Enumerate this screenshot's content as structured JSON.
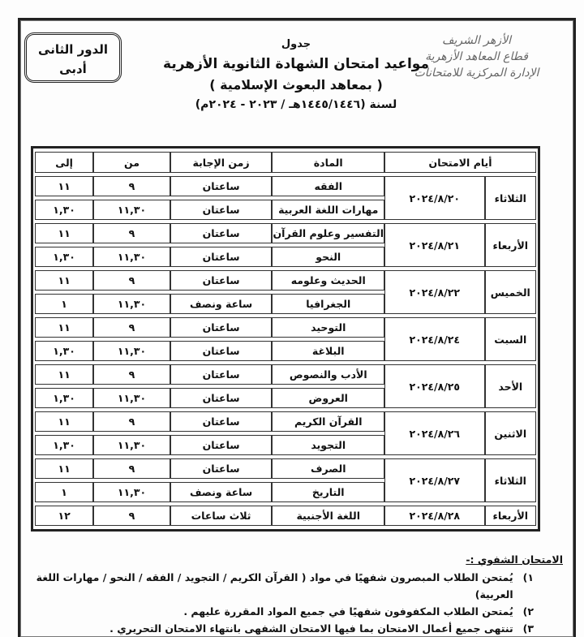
{
  "header": {
    "round_box": [
      "الدور الثانى",
      "أدبى"
    ],
    "logo_lines": [
      "الأزهر الشريف",
      "قطاع المعاهد الأزهرية",
      "الإدارة المركزية للامتحانات"
    ],
    "title_small": "جدول",
    "title_main": "مواعيد امتحان الشهادة الثانوية الأزهرية",
    "title_sub": "( بمعاهد البعوث الإسلامية )",
    "title_year": "لسنة (١٤٤٥/١٤٤٦هـ / ٢٠٢٣ - ٢٠٢٤م)"
  },
  "table": {
    "headers": {
      "days": "أيام الامتحان",
      "subject": "المادة",
      "duration": "زمن الإجابة",
      "from": "من",
      "to": "إلى"
    },
    "groups": [
      {
        "day": "الثلاثاء",
        "date": "٢٠٢٤/٨/٢٠",
        "rows": [
          [
            "الفقه",
            "ساعتان",
            "٩",
            "١١"
          ],
          [
            "مهارات اللغة العربية",
            "ساعتان",
            "١١,٣٠",
            "١,٣٠"
          ]
        ]
      },
      {
        "day": "الأربعاء",
        "date": "٢٠٢٤/٨/٢١",
        "rows": [
          [
            "التفسير وعلوم القرآن",
            "ساعتان",
            "٩",
            "١١"
          ],
          [
            "النحو",
            "ساعتان",
            "١١,٣٠",
            "١,٣٠"
          ]
        ]
      },
      {
        "day": "الخميس",
        "date": "٢٠٢٤/٨/٢٢",
        "rows": [
          [
            "الحديث وعلومه",
            "ساعتان",
            "٩",
            "١١"
          ],
          [
            "الجغرافيا",
            "ساعة ونصف",
            "١١,٣٠",
            "١"
          ]
        ]
      },
      {
        "day": "السبت",
        "date": "٢٠٢٤/٨/٢٤",
        "rows": [
          [
            "التوحيد",
            "ساعتان",
            "٩",
            "١١"
          ],
          [
            "البلاغة",
            "ساعتان",
            "١١,٣٠",
            "١,٣٠"
          ]
        ]
      },
      {
        "day": "الأحد",
        "date": "٢٠٢٤/٨/٢٥",
        "rows": [
          [
            "الأدب والنصوص",
            "ساعتان",
            "٩",
            "١١"
          ],
          [
            "العروض",
            "ساعتان",
            "١١,٣٠",
            "١,٣٠"
          ]
        ]
      },
      {
        "day": "الاثنين",
        "date": "٢٠٢٤/٨/٢٦",
        "rows": [
          [
            "القرآن الكريم",
            "ساعتان",
            "٩",
            "١١"
          ],
          [
            "التجويد",
            "ساعتان",
            "١١,٣٠",
            "١,٣٠"
          ]
        ]
      },
      {
        "day": "الثلاثاء",
        "date": "٢٠٢٤/٨/٢٧",
        "rows": [
          [
            "الصرف",
            "ساعتان",
            "٩",
            "١١"
          ],
          [
            "التاريخ",
            "ساعة ونصف",
            "١١,٣٠",
            "١"
          ]
        ]
      },
      {
        "day": "الأربعاء",
        "date": "٢٠٢٤/٨/٢٨",
        "rows": [
          [
            "اللغة الأجنبية",
            "ثلاث ساعات",
            "٩",
            "١٢"
          ]
        ]
      }
    ]
  },
  "oral": {
    "title": "الامتحان الشفوي :-",
    "items": [
      {
        "num": "١)",
        "text": "يُمتحن الطلاب المبصرون شفهيًا في مواد ( القرآن الكريم / التجويد / الفقه / النحو / مهارات اللغة العربية)"
      },
      {
        "num": "٢)",
        "text": "يُمتحن الطلاب المكفوفون شفهيًا في جميع المواد المقررة عليهم ."
      },
      {
        "num": "٣)",
        "text": "تنتهى جميع أعمال الامتحان بما فيها الامتحان الشفهى بانتهاء الامتحان التحريري ."
      }
    ]
  }
}
